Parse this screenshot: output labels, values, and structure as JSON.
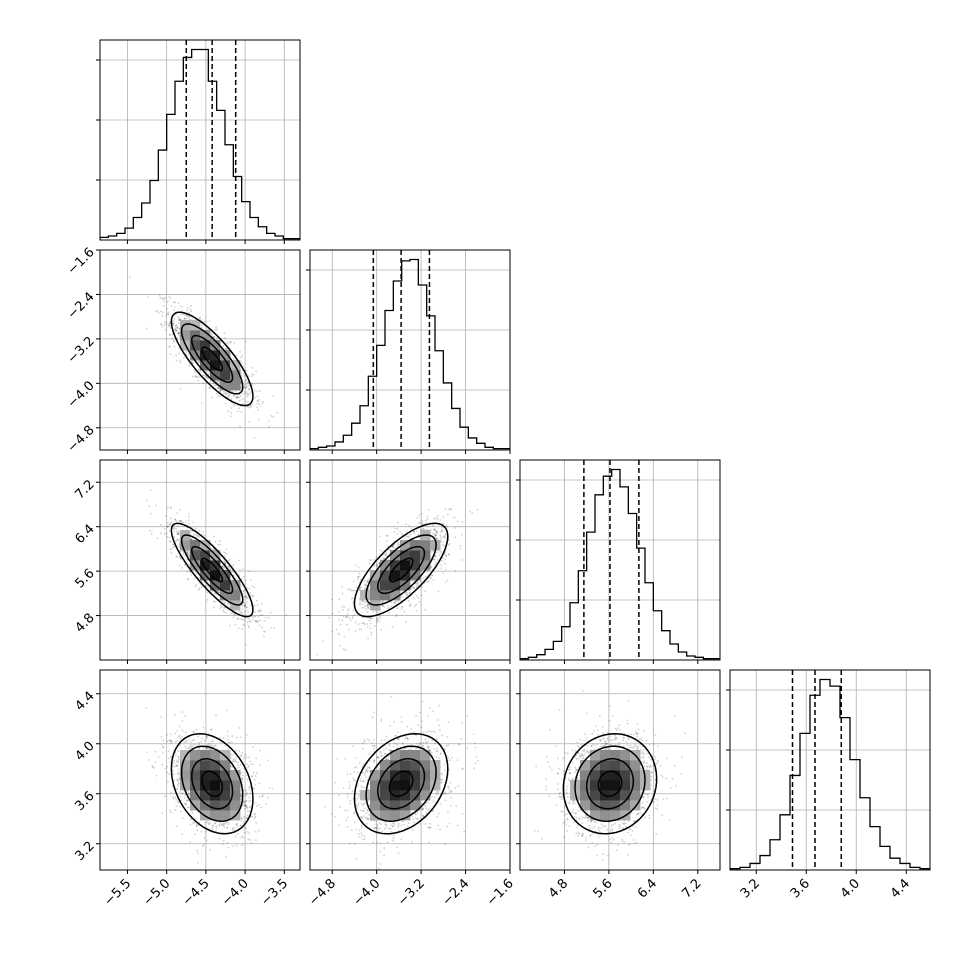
{
  "chart_data": {
    "type": "corner",
    "parameters": [
      {
        "id": "p0",
        "ticks": [
          -5.5,
          -5.0,
          -4.5,
          -4.0,
          -3.5
        ],
        "tick_labels": [
          "−5.5",
          "−5.0",
          "−4.5",
          "−4.0",
          "−3.5"
        ],
        "range": [
          -5.85,
          -3.3
        ],
        "quantiles": [
          -4.75,
          -4.42,
          -4.12
        ],
        "hist": [
          2,
          3,
          5,
          9,
          17,
          28,
          45,
          68,
          95,
          120,
          138,
          144,
          144,
          120,
          98,
          72,
          48,
          29,
          17,
          10,
          5,
          3,
          1,
          1
        ],
        "hist_range": [
          -5.85,
          -3.3
        ]
      },
      {
        "id": "p1",
        "ticks": [
          -4.8,
          -4.0,
          -3.2,
          -2.4,
          -1.6
        ],
        "tick_labels": [
          "−4.8",
          "−4.0",
          "−3.2",
          "−2.4",
          "−1.6"
        ],
        "range": [
          -5.2,
          -1.6
        ],
        "quantiles": [
          -4.06,
          -3.56,
          -3.05
        ],
        "hist": [
          1,
          2,
          3,
          6,
          11,
          20,
          33,
          55,
          78,
          104,
          126,
          141,
          142,
          123,
          100,
          74,
          50,
          31,
          17,
          9,
          5,
          2,
          1,
          1
        ],
        "hist_range": [
          -5.2,
          -1.6
        ]
      },
      {
        "id": "p2",
        "ticks": [
          4.8,
          5.6,
          6.4,
          7.2
        ],
        "tick_labels": [
          "4.8",
          "5.6",
          "6.4",
          "7.2"
        ],
        "range": [
          4.0,
          7.6
        ],
        "quantiles": [
          5.15,
          5.62,
          6.14
        ],
        "hist": [
          1,
          2,
          4,
          8,
          14,
          25,
          43,
          67,
          96,
          124,
          138,
          143,
          130,
          110,
          84,
          58,
          37,
          22,
          12,
          6,
          3,
          2,
          1,
          1
        ],
        "hist_range": [
          4.0,
          7.6
        ]
      },
      {
        "id": "p3",
        "ticks": [
          3.2,
          3.6,
          4.0,
          4.4
        ],
        "tick_labels": [
          "3.2",
          "3.6",
          "4.0",
          "4.4"
        ],
        "range": [
          2.99,
          4.59
        ],
        "quantiles": [
          3.49,
          3.67,
          3.88
        ],
        "hist": [
          1,
          2,
          5,
          11,
          23,
          42,
          72,
          104,
          133,
          145,
          140,
          116,
          84,
          55,
          33,
          18,
          9,
          5,
          2,
          1
        ],
        "hist_range": [
          2.99,
          4.59
        ]
      }
    ],
    "pairs": [
      {
        "x": 0,
        "y": 1,
        "mean": [
          -4.42,
          -3.56
        ],
        "sd": [
          0.26,
          0.42
        ],
        "rho": -0.8
      },
      {
        "x": 0,
        "y": 2,
        "mean": [
          -4.42,
          5.62
        ],
        "sd": [
          0.26,
          0.42
        ],
        "rho": -0.85
      },
      {
        "x": 1,
        "y": 2,
        "mean": [
          -3.56,
          5.62
        ],
        "sd": [
          0.42,
          0.42
        ],
        "rho": 0.72
      },
      {
        "x": 0,
        "y": 3,
        "mean": [
          -4.42,
          3.68
        ],
        "sd": [
          0.26,
          0.2
        ],
        "rho": -0.3
      },
      {
        "x": 1,
        "y": 3,
        "mean": [
          -3.56,
          3.68
        ],
        "sd": [
          0.42,
          0.2
        ],
        "rho": 0.3
      },
      {
        "x": 2,
        "y": 3,
        "mean": [
          5.62,
          3.68
        ],
        "sd": [
          0.42,
          0.2
        ],
        "rho": 0.1
      }
    ],
    "grid": true,
    "contour_levels_sigma": [
      0.5,
      1.0,
      1.5,
      2.0
    ]
  }
}
